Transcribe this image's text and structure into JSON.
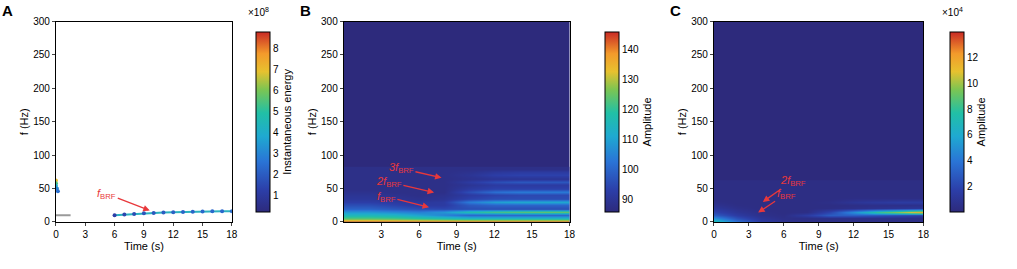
{
  "chart_data": [
    {
      "panel": "A",
      "type": "scatter",
      "x_label": "Time (s)",
      "y_label": "f (Hz)",
      "xlim": [
        0,
        18
      ],
      "xticks": [
        0,
        3,
        6,
        9,
        12,
        15,
        18
      ],
      "ylim": [
        0,
        300
      ],
      "yticks": [
        0,
        50,
        100,
        150,
        200,
        250,
        300
      ],
      "series": [
        {
          "x": [
            6,
            7,
            8,
            9,
            10,
            11,
            12,
            13,
            14,
            15,
            16,
            17,
            18
          ],
          "y": [
            10,
            11,
            12,
            12.8,
            13.5,
            14,
            14.5,
            15,
            15.3,
            15.6,
            15.8,
            16,
            16
          ],
          "energy": [
            1.2,
            1.4,
            1.6,
            1.8,
            1.9,
            2,
            2.1,
            2.2,
            2.2,
            2.3,
            2.3,
            2.3,
            2.3
          ],
          "color": "#2bb3c0"
        },
        {
          "x": [
            0,
            0,
            0,
            0.1,
            0.2
          ],
          "y": [
            62,
            58,
            54,
            50,
            46
          ],
          "energy": [
            7,
            5.5,
            4,
            3,
            2.5
          ],
          "color": "#e8b12f"
        },
        {
          "x": [
            0,
            1.5
          ],
          "y": [
            10,
            10
          ],
          "color": "#9a9a9a"
        }
      ],
      "colorbar": {
        "title": "Instantaneous energy",
        "range": [
          0.2,
          8.8
        ],
        "ticks": [
          1,
          2,
          3,
          4,
          5,
          6,
          7,
          8
        ],
        "multiplier": {
          "base": "×10",
          "exponent": 8
        }
      },
      "annotations": [
        {
          "text": "f",
          "subscript": "BRF",
          "x": 9.6,
          "y": 17,
          "text_x": 5.2,
          "text_y": 42
        }
      ]
    },
    {
      "panel": "B",
      "type": "heatmap",
      "x_label": "Time (s)",
      "y_label": "f (Hz)",
      "xlim": [
        0,
        18
      ],
      "xticks": [
        3,
        6,
        9,
        12,
        15,
        18
      ],
      "ylim": [
        0,
        300
      ],
      "yticks": [
        0,
        50,
        100,
        150,
        200,
        250,
        300
      ],
      "x": [
        0,
        2,
        4,
        6,
        8,
        10,
        12,
        14,
        16,
        18
      ],
      "y": [
        0,
        5,
        10,
        15,
        20,
        25,
        30,
        35,
        40,
        45,
        50,
        55,
        60,
        65,
        70,
        75,
        80
      ],
      "z": [
        [
          145,
          145,
          145,
          145,
          145,
          145,
          145,
          145,
          145,
          145
        ],
        [
          125,
          125,
          124,
          122,
          120,
          118,
          118,
          118,
          118,
          118
        ],
        [
          115,
          115,
          114,
          110,
          105,
          100,
          100,
          100,
          100,
          100
        ],
        [
          108,
          108,
          106,
          104,
          108,
          118,
          122,
          124,
          125,
          125
        ],
        [
          100,
          100,
          98,
          96,
          95,
          96,
          96,
          96,
          96,
          96
        ],
        [
          96,
          96,
          94,
          92,
          92,
          98,
          100,
          100,
          100,
          100
        ],
        [
          93,
          93,
          92,
          91,
          92,
          104,
          110,
          112,
          112,
          112
        ],
        [
          91,
          91,
          90,
          89,
          90,
          94,
          96,
          96,
          96,
          96
        ],
        [
          90,
          90,
          89,
          88,
          89,
          92,
          94,
          95,
          95,
          95
        ],
        [
          89,
          89,
          88,
          88,
          88,
          96,
          102,
          104,
          104,
          104
        ],
        [
          88,
          88,
          88,
          88,
          88,
          92,
          94,
          94,
          94,
          94
        ],
        [
          88,
          88,
          88,
          88,
          88,
          90,
          92,
          92,
          92,
          92
        ],
        [
          88,
          88,
          88,
          88,
          88,
          92,
          96,
          98,
          98,
          98
        ],
        [
          88,
          88,
          88,
          88,
          88,
          89,
          90,
          90,
          90,
          90
        ],
        [
          88,
          88,
          88,
          88,
          88,
          90,
          93,
          94,
          94,
          94
        ],
        [
          88,
          88,
          88,
          88,
          88,
          89,
          91,
          92,
          92,
          92
        ],
        [
          88,
          88,
          88,
          88,
          88,
          88,
          88,
          88,
          88,
          88
        ]
      ],
      "colorbar": {
        "title": "Amplitude",
        "range": [
          86,
          146
        ],
        "ticks": [
          90,
          100,
          110,
          120,
          130,
          140
        ]
      },
      "annotations": [
        {
          "text": "3f",
          "subscript": "BRF",
          "x": 7.8,
          "y": 66,
          "text_x": 4.6,
          "text_y": 80
        },
        {
          "text": "2f",
          "subscript": "BRF",
          "x": 7.2,
          "y": 44,
          "text_x": 3.6,
          "text_y": 60
        },
        {
          "text": "f",
          "subscript": "BRF",
          "x": 6.8,
          "y": 22,
          "text_x": 3.4,
          "text_y": 38
        }
      ]
    },
    {
      "panel": "C",
      "type": "heatmap",
      "x_label": "Time (s)",
      "y_label": "f (Hz)",
      "xlim": [
        0,
        18
      ],
      "xticks": [
        0,
        3,
        6,
        9,
        12,
        15,
        18
      ],
      "ylim": [
        0,
        300
      ],
      "yticks": [
        0,
        50,
        100,
        150,
        200,
        250,
        300
      ],
      "x": [
        0,
        2,
        4,
        6,
        8,
        10,
        12,
        14,
        16,
        18
      ],
      "y": [
        0,
        5,
        10,
        15,
        20,
        25,
        30,
        35,
        40,
        45,
        50,
        55,
        60
      ],
      "z": [
        [
          8,
          4,
          1.5,
          0.8,
          0.5,
          0.5,
          0.5,
          0.5,
          0.5,
          0.5
        ],
        [
          5,
          2.5,
          1,
          0.5,
          0.4,
          0.4,
          0.4,
          0.4,
          0.4,
          0.4
        ],
        [
          3,
          1.5,
          0.6,
          0.4,
          1.5,
          3,
          3,
          2.5,
          2,
          1.5
        ],
        [
          2,
          1,
          0.5,
          0.3,
          0.4,
          2,
          5,
          8,
          10,
          12
        ],
        [
          1.2,
          0.6,
          0.3,
          0.3,
          0.3,
          0.4,
          0.6,
          0.8,
          1,
          1.2
        ],
        [
          0.8,
          0.4,
          0.3,
          0.3,
          0.3,
          0.3,
          0.4,
          0.5,
          0.5,
          0.6
        ],
        [
          0.5,
          0.3,
          0.3,
          0.3,
          0.3,
          0.5,
          1,
          1.3,
          1.5,
          1.5
        ],
        [
          0.3,
          0.3,
          0.3,
          0.3,
          0.3,
          0.3,
          0.4,
          0.4,
          0.4,
          0.4
        ],
        [
          0.3,
          0.3,
          0.3,
          0.3,
          0.3,
          0.3,
          0.3,
          0.3,
          0.3,
          0.3
        ],
        [
          0.3,
          0.3,
          0.3,
          0.3,
          0.3,
          0.3,
          0.3,
          0.3,
          0.3,
          0.3
        ],
        [
          0.3,
          0.3,
          0.3,
          0.3,
          0.3,
          0.3,
          0.3,
          0.3,
          0.3,
          0.3
        ],
        [
          0.3,
          0.3,
          0.3,
          0.3,
          0.3,
          0.3,
          0.3,
          0.3,
          0.3,
          0.3
        ],
        [
          0.3,
          0.3,
          0.3,
          0.3,
          0.3,
          0.3,
          0.3,
          0.3,
          0.3,
          0.3
        ]
      ],
      "colorbar": {
        "title": "Amplitude",
        "range": [
          0,
          14
        ],
        "ticks": [
          2,
          4,
          6,
          8,
          10,
          12
        ],
        "multiplier": {
          "base": "×10",
          "exponent": 4
        }
      },
      "annotations": [
        {
          "text": "2f",
          "subscript": "BRF",
          "x": 4.2,
          "y": 30,
          "text_x": 6.8,
          "text_y": 62
        },
        {
          "text": "f",
          "subscript": "BRF",
          "x": 3.8,
          "y": 14,
          "text_x": 6.2,
          "text_y": 42
        }
      ]
    }
  ]
}
